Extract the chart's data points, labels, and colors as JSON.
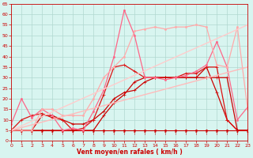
{
  "background_color": "#d8f5f0",
  "grid_color": "#b0d8d0",
  "xlabel": "Vent moyen/en rafales ( km/h )",
  "xlim": [
    0,
    23
  ],
  "ylim": [
    0,
    65
  ],
  "yticks": [
    0,
    5,
    10,
    15,
    20,
    25,
    30,
    35,
    40,
    45,
    50,
    55,
    60,
    65
  ],
  "xticks": [
    0,
    1,
    2,
    3,
    4,
    5,
    6,
    7,
    8,
    9,
    10,
    11,
    12,
    13,
    14,
    15,
    16,
    17,
    18,
    19,
    20,
    21,
    22,
    23
  ],
  "lines": [
    {
      "x": [
        0,
        1,
        2,
        3,
        4,
        5,
        6,
        7,
        8,
        9,
        10,
        11,
        12,
        13,
        14,
        15,
        16,
        17,
        18,
        19,
        20,
        21,
        22,
        23
      ],
      "y": [
        5,
        5,
        5,
        5,
        5,
        5,
        5,
        5,
        5,
        5,
        5,
        5,
        5,
        5,
        5,
        5,
        5,
        5,
        5,
        5,
        5,
        5,
        5,
        5
      ],
      "color": "#cc0000",
      "lw": 0.8,
      "marker": "D",
      "ms": 1.5
    },
    {
      "x": [
        0,
        1,
        2,
        3,
        4,
        5,
        6,
        7,
        8,
        9,
        10,
        11,
        12,
        13,
        14,
        15,
        16,
        17,
        18,
        19,
        20,
        21,
        22,
        23
      ],
      "y": [
        5,
        5,
        5,
        12,
        12,
        10,
        8,
        8,
        10,
        14,
        20,
        23,
        24,
        28,
        30,
        30,
        30,
        30,
        30,
        35,
        23,
        10,
        5,
        5
      ],
      "color": "#cc0000",
      "lw": 0.9,
      "marker": "+",
      "ms": 3
    },
    {
      "x": [
        0,
        1,
        2,
        3,
        4,
        5,
        6,
        7,
        8,
        9,
        10,
        11,
        12,
        13,
        14,
        15,
        16,
        17,
        18,
        19,
        20,
        21,
        22,
        23
      ],
      "y": [
        5,
        10,
        12,
        13,
        11,
        10,
        5,
        6,
        10,
        22,
        35,
        36,
        33,
        30,
        30,
        30,
        30,
        32,
        32,
        35,
        35,
        10,
        5,
        5
      ],
      "color": "#dd1111",
      "lw": 0.9,
      "marker": "+",
      "ms": 3
    },
    {
      "x": [
        0,
        1,
        2,
        3,
        4,
        5,
        6,
        7,
        8,
        9,
        10,
        11,
        12,
        13,
        14,
        15,
        16,
        17,
        18,
        19,
        20,
        21,
        22,
        23
      ],
      "y": [
        5,
        5,
        5,
        5,
        5,
        5,
        5,
        5,
        5,
        12,
        18,
        22,
        28,
        30,
        30,
        30,
        30,
        30,
        30,
        30,
        30,
        30,
        5,
        5
      ],
      "color": "#cc0000",
      "lw": 0.9,
      "marker": "+",
      "ms": 3
    },
    {
      "x": [
        0,
        1,
        2,
        3,
        4,
        5,
        6,
        7,
        8,
        9,
        10,
        11,
        12,
        13,
        14,
        15,
        16,
        17,
        18,
        19,
        20,
        21,
        22,
        23
      ],
      "y": [
        8,
        20,
        11,
        15,
        12,
        5,
        6,
        5,
        14,
        24,
        40,
        62,
        50,
        30,
        30,
        29,
        30,
        31,
        33,
        36,
        47,
        35,
        10,
        16
      ],
      "color": "#ff6688",
      "lw": 0.9,
      "marker": "o",
      "ms": 1.5
    },
    {
      "x": [
        0,
        1,
        2,
        3,
        4,
        5,
        6,
        7,
        8,
        9,
        10,
        11,
        12,
        13,
        14,
        15,
        16,
        17,
        18,
        19,
        20,
        21,
        22,
        23
      ],
      "y": [
        5,
        5,
        5,
        15,
        15,
        12,
        12,
        12,
        20,
        30,
        35,
        40,
        52,
        53,
        54,
        53,
        54,
        54,
        55,
        54,
        36,
        35,
        54,
        15
      ],
      "color": "#ffaaaa",
      "lw": 0.9,
      "marker": "o",
      "ms": 1.5
    },
    {
      "x": [
        0,
        23
      ],
      "y": [
        5,
        35
      ],
      "color": "#ffbbbb",
      "lw": 1.0,
      "marker": null,
      "ms": 0
    },
    {
      "x": [
        0,
        23
      ],
      "y": [
        5,
        55
      ],
      "color": "#ffcccc",
      "lw": 1.0,
      "marker": null,
      "ms": 0
    }
  ]
}
